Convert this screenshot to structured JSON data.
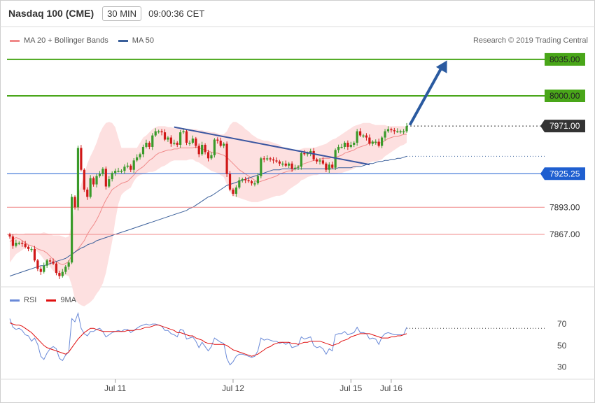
{
  "header": {
    "title": "Nasdaq 100 (CME)",
    "timeframe": "30 MIN",
    "time": "09:00:36 CET"
  },
  "credit": "Research © 2019 Trading Central",
  "legend": {
    "bollinger_label": "MA 20 + Bollinger Bands",
    "ma50_label": "MA 50",
    "rsi_label": "RSI",
    "ma9_label": "9MA"
  },
  "colors": {
    "bollinger": "#f08a8a",
    "ma50": "#3a5f9a",
    "bull": "#3a9a2a",
    "bear": "#d01818",
    "green_level": "#49a619",
    "blue_level": "#1f5fd0",
    "red_level": "#f08a8a",
    "last_price": "#333333",
    "rsi": "#6a8ad8",
    "rsi_ma": "#e01010",
    "trend": "#3a56a0",
    "arrow": "#2a5aa0"
  },
  "chart_data": {
    "type": "candlestick",
    "ylim": [
      7820,
      8045
    ],
    "price_levels": [
      {
        "label": "8035.00",
        "value": 8035,
        "kind": "resistance"
      },
      {
        "label": "8000.00",
        "value": 8000,
        "kind": "resistance"
      },
      {
        "label": "7971.00",
        "value": 7971,
        "kind": "last"
      },
      {
        "label": "7925.25",
        "value": 7925.25,
        "kind": "pivot"
      },
      {
        "label": "7893.00",
        "value": 7893,
        "kind": "support"
      },
      {
        "label": "7867.00",
        "value": 7867,
        "kind": "support"
      }
    ],
    "x_ticks": [
      {
        "label": "Jul 11",
        "index": 34
      },
      {
        "label": "Jul 12",
        "index": 72
      },
      {
        "label": "Jul 15",
        "index": 110
      },
      {
        "label": "Jul 16",
        "index": 123
      }
    ],
    "closes": [
      7865,
      7856,
      7859,
      7859,
      7858,
      7855,
      7853,
      7853,
      7842,
      7834,
      7831,
      7837,
      7842,
      7841,
      7839,
      7830,
      7827,
      7831,
      7836,
      7840,
      7903,
      7893,
      7950,
      7929,
      7910,
      7903,
      7921,
      7915,
      7923,
      7925,
      7930,
      7913,
      7920,
      7926,
      7928,
      7928,
      7928,
      7932,
      7933,
      7929,
      7938,
      7941,
      7944,
      7951,
      7955,
      7951,
      7962,
      7966,
      7966,
      7965,
      7958,
      7960,
      7954,
      7955,
      7953,
      7965,
      7966,
      7955,
      7955,
      7959,
      7952,
      7944,
      7953,
      7946,
      7940,
      7943,
      7958,
      7957,
      7952,
      7954,
      7925,
      7910,
      7906,
      7912,
      7919,
      7920,
      7919,
      7918,
      7916,
      7916,
      7923,
      7940,
      7939,
      7940,
      7939,
      7938,
      7937,
      7935,
      7935,
      7933,
      7935,
      7930,
      7931,
      7932,
      7945,
      7944,
      7945,
      7947,
      7939,
      7937,
      7938,
      7935,
      7929,
      7934,
      7931,
      7948,
      7951,
      7951,
      7955,
      7951,
      7953,
      7955,
      7966,
      7962,
      7962,
      7960,
      7954,
      7956,
      7956,
      7952,
      7960,
      7966,
      7968,
      7967,
      7966,
      7966,
      7966,
      7966,
      7971
    ],
    "ma20": [
      7860,
      7862,
      7864,
      7863,
      7861,
      7859,
      7857,
      7856,
      7855,
      7853,
      7852,
      7851,
      7849,
      7846,
      7843,
      7841,
      7839,
      7838,
      7839,
      7841,
      7847,
      7850,
      7853,
      7857,
      7861,
      7867,
      7872,
      7876,
      7881,
      7887,
      7894,
      7900,
      7905,
      7910,
      7912,
      7914,
      7916,
      7917,
      7918,
      7921,
      7924,
      7928,
      7930,
      7932,
      7935,
      7938,
      7940,
      7943,
      7945,
      7946,
      7947,
      7948,
      7948,
      7949,
      7949,
      7950,
      7950,
      7950,
      7950,
      7950,
      7951,
      7950,
      7949,
      7948,
      7947,
      7946,
      7945,
      7945,
      7944,
      7943,
      7941,
      7938,
      7935,
      7932,
      7929,
      7927,
      7925,
      7923,
      7921,
      7919,
      7917,
      7918,
      7919,
      7920,
      7921,
      7922,
      7923,
      7925,
      7926,
      7927,
      7928,
      7928,
      7930,
      7932,
      7934,
      7935,
      7936,
      7937,
      7938,
      7938,
      7939,
      7940,
      7940,
      7940,
      7941,
      7941,
      7942,
      7943,
      7945,
      7946,
      7947,
      7948,
      7950,
      7951,
      7952,
      7953,
      7955,
      7956,
      7955,
      7955,
      7955,
      7957,
      7959,
      7960,
      7961,
      7961,
      7962,
      7963,
      7963
    ],
    "bb_upper": [
      7866,
      7867,
      7868,
      7867,
      7867,
      7868,
      7868,
      7868,
      7868,
      7868,
      7868,
      7869,
      7868,
      7867,
      7866,
      7866,
      7866,
      7865,
      7864,
      7865,
      7877,
      7895,
      7905,
      7915,
      7925,
      7935,
      7942,
      7948,
      7955,
      7964,
      7970,
      7974,
      7975,
      7974,
      7970,
      7960,
      7950,
      7950,
      7950,
      7950,
      7950,
      7950,
      7955,
      7960,
      7962,
      7965,
      7968,
      7970,
      7971,
      7971,
      7971,
      7970,
      7970,
      7969,
      7969,
      7968,
      7968,
      7968,
      7968,
      7968,
      7968,
      7967,
      7967,
      7966,
      7966,
      7965,
      7965,
      7964,
      7963,
      7963,
      7966,
      7972,
      7975,
      7975,
      7973,
      7971,
      7968,
      7966,
      7963,
      7961,
      7959,
      7958,
      7957,
      7957,
      7956,
      7955,
      7954,
      7953,
      7951,
      7950,
      7949,
      7948,
      7948,
      7948,
      7949,
      7950,
      7950,
      7950,
      7950,
      7951,
      7952,
      7953,
      7954,
      7956,
      7958,
      7959,
      7961,
      7963,
      7965,
      7967,
      7969,
      7971,
      7972,
      7973,
      7974,
      7974,
      7974,
      7973,
      7972,
      7972,
      7972,
      7972,
      7971,
      7971,
      7971,
      7971,
      7971,
      7971,
      7970
    ],
    "bb_lower": [
      7840,
      7844,
      7848,
      7850,
      7852,
      7854,
      7855,
      7856,
      7853,
      7850,
      7847,
      7843,
      7840,
      7836,
      7832,
      7830,
      7828,
      7827,
      7828,
      7827,
      7818,
      7805,
      7801,
      7799,
      7798,
      7800,
      7802,
      7805,
      7810,
      7814,
      7820,
      7830,
      7845,
      7860,
      7880,
      7896,
      7905,
      7908,
      7910,
      7912,
      7918,
      7922,
      7924,
      7925,
      7926,
      7927,
      7927,
      7928,
      7930,
      7932,
      7933,
      7935,
      7937,
      7938,
      7938,
      7938,
      7938,
      7938,
      7939,
      7939,
      7937,
      7936,
      7934,
      7932,
      7930,
      7928,
      7927,
      7926,
      7924,
      7922,
      7915,
      7908,
      7904,
      7903,
      7902,
      7901,
      7900,
      7899,
      7898,
      7898,
      7898,
      7899,
      7900,
      7901,
      7902,
      7903,
      7904,
      7904,
      7905,
      7907,
      7910,
      7912,
      7914,
      7916,
      7919,
      7920,
      7922,
      7923,
      7924,
      7924,
      7925,
      7925,
      7925,
      7925,
      7925,
      7925,
      7926,
      7926,
      7927,
      7928,
      7929,
      7930,
      7932,
      7933,
      7934,
      7935,
      7936,
      7937,
      7937,
      7938,
      7939,
      7942,
      7944,
      7946,
      7948,
      7950,
      7952,
      7953,
      7955
    ],
    "ma50": [
      7827,
      7828,
      7829,
      7830,
      7831,
      7832,
      7833,
      7834,
      7835,
      7836,
      7837,
      7837,
      7838,
      7839,
      7840,
      7841,
      7842,
      7843,
      7844,
      7846,
      7848,
      7850,
      7852,
      7854,
      7855,
      7857,
      7858,
      7859,
      7861,
      7862,
      7863,
      7864,
      7865,
      7866,
      7867,
      7868,
      7869,
      7870,
      7871,
      7872,
      7873,
      7874,
      7875,
      7876,
      7877,
      7878,
      7879,
      7880,
      7881,
      7882,
      7883,
      7884,
      7885,
      7886,
      7887,
      7888,
      7889,
      7890,
      7892,
      7893,
      7895,
      7897,
      7899,
      7901,
      7903,
      7904,
      7906,
      7908,
      7910,
      7912,
      7914,
      7915,
      7916,
      7917,
      7918,
      7919,
      7920,
      7921,
      7922,
      7923,
      7924,
      7925,
      7926,
      7927,
      7928,
      7929,
      7929,
      7929,
      7930,
      7930,
      7930,
      7930,
      7930,
      7930,
      7930,
      7930,
      7930,
      7930,
      7930,
      7930,
      7930,
      7930,
      7930,
      7930,
      7930,
      7930,
      7931,
      7931,
      7931,
      7931,
      7931,
      7932,
      7932,
      7932,
      7933,
      7934,
      7935,
      7935,
      7936,
      7937,
      7937,
      7938,
      7938,
      7939,
      7939,
      7940,
      7940,
      7941,
      7942
    ],
    "trend_line": {
      "start": {
        "index": 53,
        "value": 7970
      },
      "end": {
        "index": 116,
        "value": 7934
      }
    },
    "forecast_arrow": {
      "start": {
        "index": 129,
        "value": 7972
      },
      "end": {
        "index": 141,
        "value": 8034
      }
    },
    "rsi": {
      "ylim": [
        20,
        85
      ],
      "ticks": [
        30,
        50,
        70
      ],
      "dotted_level": 66,
      "values": [
        75,
        67,
        65,
        66,
        64,
        60,
        59,
        54,
        57,
        51,
        40,
        37,
        43,
        47,
        49,
        47,
        38,
        36,
        41,
        44,
        75,
        72,
        80,
        66,
        61,
        59,
        63,
        63,
        65,
        66,
        63,
        58,
        60,
        62,
        63,
        64,
        63,
        65,
        65,
        62,
        64,
        66,
        68,
        69,
        70,
        69,
        70,
        70,
        69,
        68,
        64,
        64,
        61,
        60,
        58,
        65,
        64,
        56,
        57,
        58,
        54,
        48,
        53,
        49,
        45,
        49,
        57,
        55,
        53,
        52,
        38,
        32,
        35,
        40,
        42,
        42,
        41,
        40,
        39,
        40,
        45,
        57,
        55,
        56,
        55,
        54,
        54,
        52,
        53,
        51,
        53,
        48,
        49,
        50,
        58,
        56,
        57,
        58,
        50,
        48,
        49,
        47,
        42,
        47,
        45,
        60,
        61,
        61,
        63,
        60,
        61,
        62,
        67,
        62,
        62,
        61,
        56,
        57,
        56,
        51,
        58,
        61,
        62,
        61,
        60,
        60,
        60,
        60,
        67
      ],
      "ma9": [
        71,
        70,
        69,
        69,
        68,
        66,
        64,
        62,
        59,
        56,
        53,
        50,
        48,
        47,
        46,
        45,
        44,
        43,
        42,
        44,
        48,
        52,
        56,
        59,
        62,
        64,
        66,
        66,
        65,
        64,
        63,
        63,
        63,
        63,
        63,
        63,
        63,
        63,
        64,
        64,
        64,
        65,
        65,
        66,
        67,
        67,
        68,
        69,
        69,
        68,
        67,
        66,
        65,
        64,
        62,
        62,
        61,
        60,
        59,
        59,
        57,
        56,
        55,
        53,
        52,
        52,
        51,
        51,
        51,
        51,
        50,
        48,
        46,
        45,
        44,
        43,
        42,
        41,
        40,
        41,
        42,
        44,
        46,
        48,
        49,
        51,
        52,
        53,
        53,
        53,
        53,
        52,
        52,
        51,
        52,
        53,
        53,
        54,
        54,
        54,
        54,
        53,
        52,
        51,
        50,
        51,
        52,
        54,
        55,
        56,
        58,
        59,
        60,
        61,
        61,
        61,
        61,
        60,
        59,
        58,
        57,
        57,
        57,
        58,
        58,
        59,
        59,
        60,
        61
      ]
    }
  }
}
